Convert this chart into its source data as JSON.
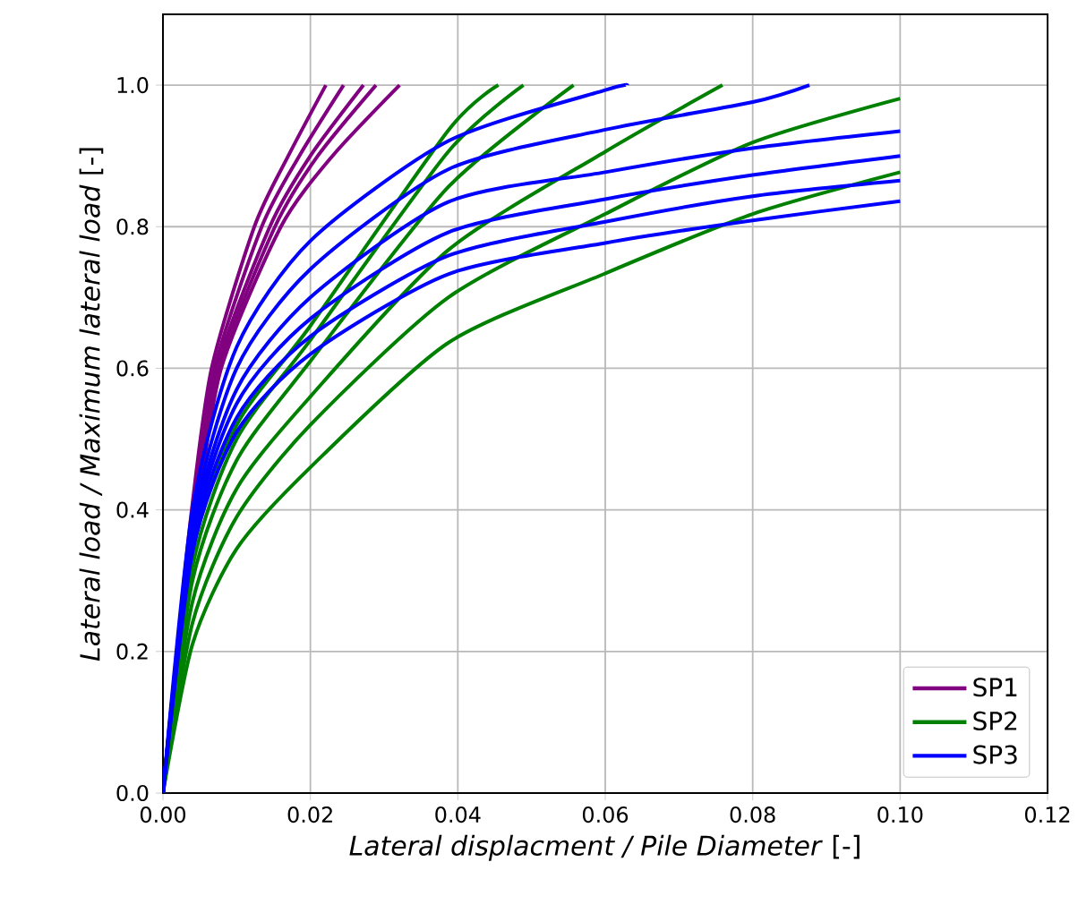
{
  "chart_data": {
    "type": "line",
    "xlabel": "*Lateral displacment / Pile Diameter*  [-]",
    "ylabel": "*Lateral load / Maximum lateral load*  [-]",
    "xlim": [
      0,
      0.12
    ],
    "ylim": [
      0,
      1.1
    ],
    "xticks": [
      {
        "value": 0,
        "label": "0.00"
      },
      {
        "value": 0.02,
        "label": "0.02"
      },
      {
        "value": 0.04,
        "label": "0.04"
      },
      {
        "value": 0.06,
        "label": "0.06"
      },
      {
        "value": 0.08,
        "label": "0.08"
      },
      {
        "value": 0.1,
        "label": "0.10"
      },
      {
        "value": 0.12,
        "label": "0.12"
      }
    ],
    "yticks": [
      {
        "value": 0,
        "label": "0.0"
      },
      {
        "value": 0.2,
        "label": "0.2"
      },
      {
        "value": 0.4,
        "label": "0.4"
      },
      {
        "value": 0.6,
        "label": "0.6"
      },
      {
        "value": 0.8,
        "label": "0.8"
      },
      {
        "value": 1,
        "label": "1.0"
      }
    ],
    "grid": true,
    "legend": "bottom right",
    "marker": "none",
    "line_style": "solid",
    "series": [
      {
        "name": "SP1",
        "color": "#800080",
        "x": [
          0,
          0.0019,
          0.0039,
          0.0066,
          0.0124,
          0.017,
          0.0221
        ],
        "values": [
          0,
          0.2,
          0.4,
          0.6,
          0.8,
          0.9,
          1.0
        ]
      },
      {
        "color": "#800080",
        "x": [
          0,
          0.002,
          0.0041,
          0.007,
          0.0134,
          0.0185,
          0.0245
        ],
        "values": [
          0,
          0.2,
          0.4,
          0.6,
          0.8,
          0.9,
          1.0
        ]
      },
      {
        "color": "#800080",
        "x": [
          0,
          0.0021,
          0.0043,
          0.0073,
          0.0145,
          0.02,
          0.0272
        ],
        "values": [
          0,
          0.2,
          0.4,
          0.6,
          0.8,
          0.9,
          1.0
        ]
      },
      {
        "color": "#800080",
        "x": [
          0,
          0.0022,
          0.0045,
          0.0076,
          0.0152,
          0.021,
          0.0289
        ],
        "values": [
          0,
          0.2,
          0.4,
          0.6,
          0.8,
          0.9,
          1.0
        ]
      },
      {
        "color": "#800080",
        "x": [
          0,
          0.0024,
          0.0047,
          0.0079,
          0.016,
          0.023,
          0.0321
        ],
        "values": [
          0,
          0.2,
          0.4,
          0.6,
          0.8,
          0.9,
          1.0
        ]
      },
      {
        "name": "SP2",
        "color": "#008000",
        "x": [
          0,
          0.004,
          0.01,
          0.02,
          0.0387,
          0.0455
        ],
        "values": [
          0,
          0.34,
          0.52,
          0.66,
          0.936,
          1.0
        ]
      },
      {
        "color": "#008000",
        "x": [
          0,
          0.004,
          0.01,
          0.02,
          0.0387,
          0.0489
        ],
        "values": [
          0,
          0.32,
          0.5,
          0.64,
          0.906,
          1.0
        ]
      },
      {
        "color": "#008000",
        "x": [
          0,
          0.004,
          0.01,
          0.02,
          0.0387,
          0.0557
        ],
        "values": [
          0,
          0.3,
          0.47,
          0.61,
          0.856,
          1.0
        ]
      },
      {
        "color": "#008000",
        "x": [
          0,
          0.004,
          0.01,
          0.02,
          0.0387,
          0.06,
          0.0759
        ],
        "values": [
          0,
          0.27,
          0.43,
          0.56,
          0.767,
          0.906,
          1.0
        ]
      },
      {
        "color": "#008000",
        "x": [
          0,
          0.004,
          0.01,
          0.02,
          0.0387,
          0.06,
          0.08,
          0.1
        ],
        "values": [
          0,
          0.24,
          0.39,
          0.52,
          0.7,
          0.818,
          0.919,
          0.981
        ]
      },
      {
        "color": "#008000",
        "x": [
          0,
          0.004,
          0.01,
          0.02,
          0.0387,
          0.06,
          0.08,
          0.1
        ],
        "values": [
          0,
          0.21,
          0.345,
          0.46,
          0.636,
          0.734,
          0.818,
          0.877
        ]
      },
      {
        "name": "SP3",
        "color": "#0000ff",
        "x": [
          0,
          0.004,
          0.01,
          0.02,
          0.0387,
          0.06,
          0.063
        ],
        "values": [
          0,
          0.4,
          0.63,
          0.78,
          0.921,
          0.993,
          1.0
        ]
      },
      {
        "color": "#0000ff",
        "x": [
          0,
          0.004,
          0.01,
          0.02,
          0.0387,
          0.06,
          0.08,
          0.0877
        ],
        "values": [
          0,
          0.38,
          0.6,
          0.74,
          0.881,
          0.937,
          0.976,
          1.0
        ]
      },
      {
        "color": "#0000ff",
        "x": [
          0,
          0.004,
          0.01,
          0.02,
          0.0387,
          0.06,
          0.08,
          0.1
        ],
        "values": [
          0,
          0.37,
          0.57,
          0.7,
          0.835,
          0.877,
          0.911,
          0.935
        ]
      },
      {
        "color": "#0000ff",
        "x": [
          0,
          0.004,
          0.01,
          0.02,
          0.0387,
          0.06,
          0.08,
          0.1
        ],
        "values": [
          0,
          0.36,
          0.55,
          0.67,
          0.792,
          0.839,
          0.873,
          0.9
        ]
      },
      {
        "color": "#0000ff",
        "x": [
          0,
          0.004,
          0.01,
          0.02,
          0.0387,
          0.06,
          0.08,
          0.1
        ],
        "values": [
          0,
          0.35,
          0.53,
          0.645,
          0.759,
          0.807,
          0.843,
          0.865
        ]
      },
      {
        "color": "#0000ff",
        "x": [
          0,
          0.004,
          0.01,
          0.02,
          0.0387,
          0.06,
          0.08,
          0.1
        ],
        "values": [
          0,
          0.34,
          0.51,
          0.62,
          0.733,
          0.777,
          0.809,
          0.836
        ]
      }
    ]
  }
}
